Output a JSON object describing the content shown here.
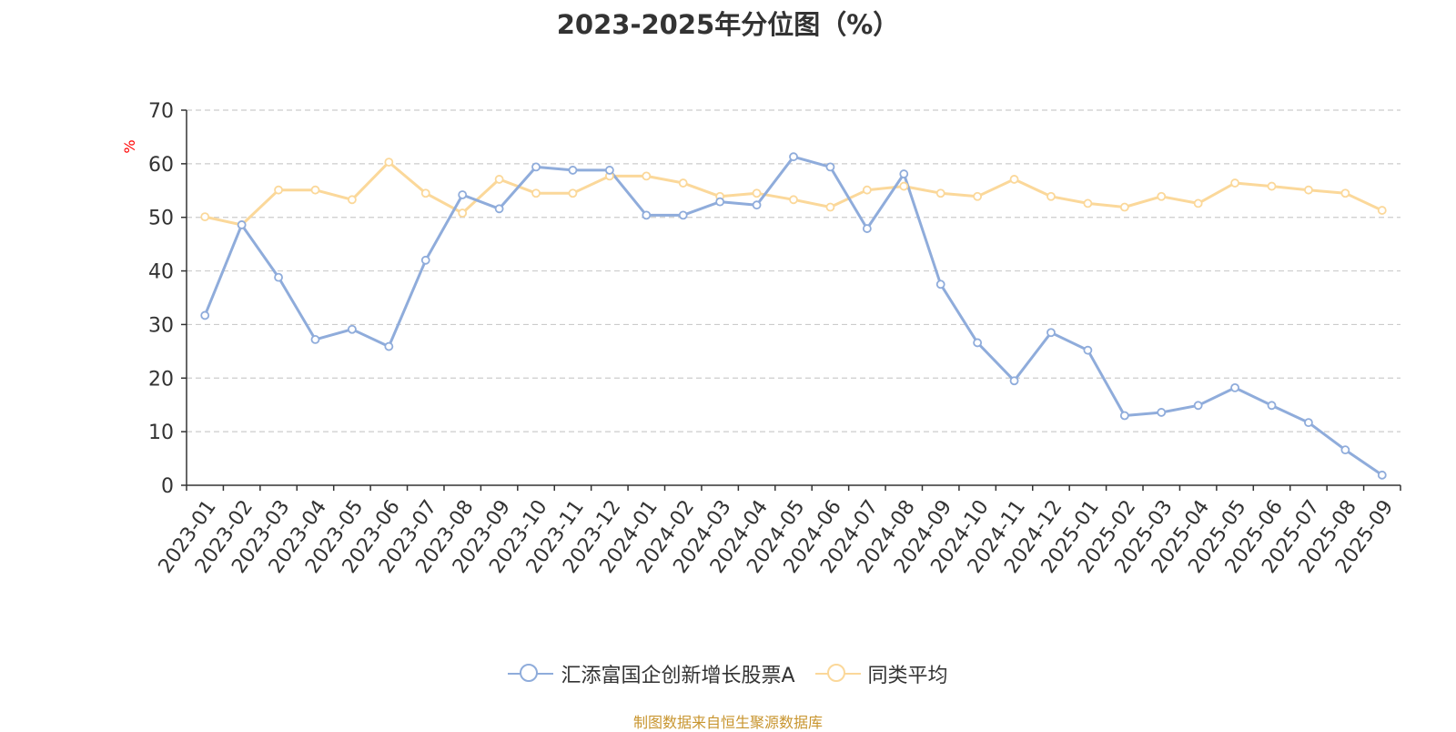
{
  "colors": {
    "series_a": "#8facdb",
    "series_b": "#fbd89a",
    "axis": "#333333",
    "grid": "#cccccc",
    "ylabel": "#ff0000",
    "source": "#c8952f"
  },
  "chart_data": {
    "type": "line",
    "title": "2023-2025年分位图（%）",
    "ylabel": "%",
    "xlabel": "",
    "ylim": [
      0,
      70
    ],
    "yticks": [
      0,
      10,
      20,
      30,
      40,
      50,
      60,
      70
    ],
    "grid": true,
    "legend_position": "bottom",
    "categories": [
      "2023-01",
      "2023-02",
      "2023-03",
      "2023-04",
      "2023-05",
      "2023-06",
      "2023-07",
      "2023-08",
      "2023-09",
      "2023-10",
      "2023-11",
      "2023-12",
      "2024-01",
      "2024-02",
      "2024-03",
      "2024-04",
      "2024-05",
      "2024-06",
      "2024-07",
      "2024-08",
      "2024-09",
      "2024-10",
      "2024-11",
      "2024-12",
      "2025-01",
      "2025-02",
      "2025-03",
      "2025-04",
      "2025-05",
      "2025-06",
      "2025-07",
      "2025-08",
      "2025-09"
    ],
    "series": [
      {
        "name": "汇添富国企创新增长股票A",
        "values": [
          31.7,
          48.6,
          38.8,
          27.2,
          29.1,
          25.9,
          42.0,
          54.2,
          51.6,
          59.4,
          58.8,
          58.8,
          50.4,
          50.4,
          52.9,
          52.3,
          61.3,
          59.4,
          47.9,
          58.1,
          37.5,
          26.6,
          19.5,
          28.5,
          25.2,
          13.0,
          13.6,
          14.9,
          18.2,
          14.9,
          11.7,
          6.6,
          1.9
        ]
      },
      {
        "name": "同类平均",
        "values": [
          50.1,
          48.6,
          55.1,
          55.1,
          53.3,
          60.3,
          54.5,
          50.8,
          57.1,
          54.5,
          54.5,
          57.7,
          57.7,
          56.4,
          53.9,
          54.5,
          53.3,
          51.9,
          55.1,
          55.8,
          54.5,
          53.9,
          57.1,
          53.9,
          52.6,
          51.9,
          53.9,
          52.6,
          56.4,
          55.8,
          55.1,
          54.5,
          51.3
        ]
      }
    ]
  },
  "legend": {
    "item_a": "汇添富国企创新增长股票A",
    "item_b": "同类平均"
  },
  "source": "制图数据来自恒生聚源数据库"
}
